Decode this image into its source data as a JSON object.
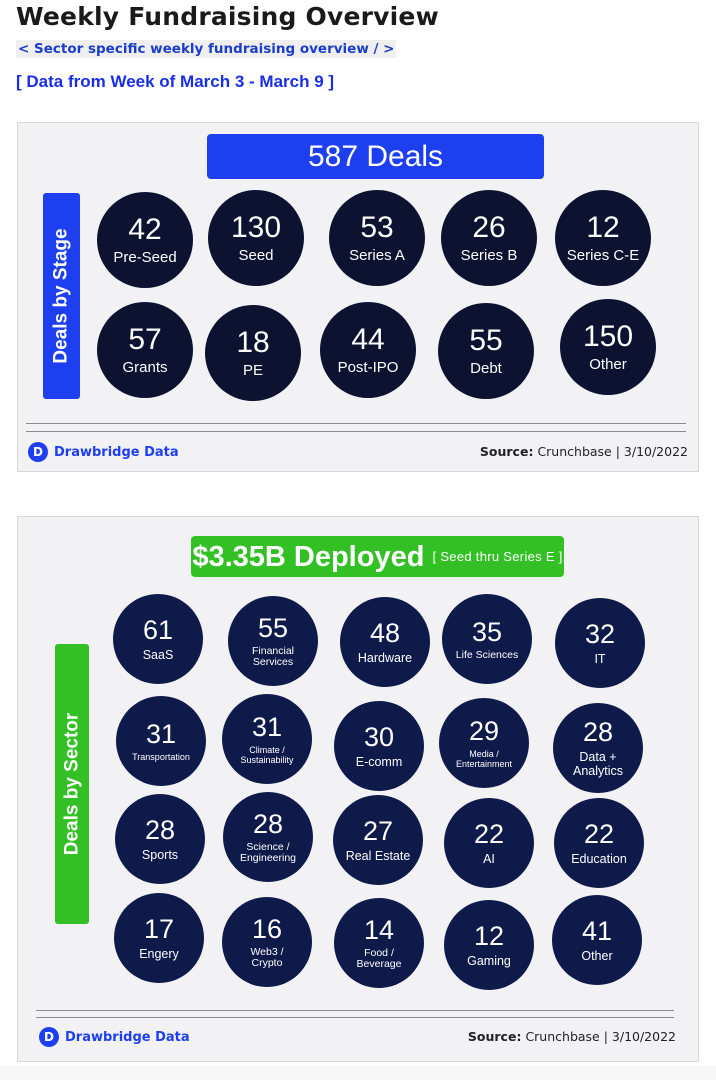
{
  "page": {
    "title": "Weekly Fundraising Overview",
    "breadcrumb": "< Sector specific weekly fundraising overview / >",
    "date_range": "[ Data from Week of March 3 - March 9 ]"
  },
  "stage_card": {
    "banner": "587 Deals",
    "side_label": "Deals by Stage",
    "items": [
      {
        "value": "42",
        "label": "Pre-Seed"
      },
      {
        "value": "130",
        "label": "Seed"
      },
      {
        "value": "53",
        "label": "Series A"
      },
      {
        "value": "26",
        "label": "Series B"
      },
      {
        "value": "12",
        "label": "Series C-E"
      },
      {
        "value": "57",
        "label": "Grants"
      },
      {
        "value": "18",
        "label": "PE"
      },
      {
        "value": "44",
        "label": "Post-IPO"
      },
      {
        "value": "55",
        "label": "Debt"
      },
      {
        "value": "150",
        "label": "Other"
      }
    ],
    "brand": "Drawbridge Data",
    "brand_icon": "D",
    "source_label": "Source:",
    "source_value": "Crunchbase | 3/10/2022",
    "colors": {
      "banner": "#1d3ff0",
      "circle": "#0c1230"
    }
  },
  "sector_card": {
    "banner_main": "$3.35B Deployed",
    "banner_sub": "[ Seed thru Series E ]",
    "side_label": "Deals by Sector",
    "items": [
      {
        "value": "61",
        "label": "SaaS"
      },
      {
        "value": "55",
        "label": "Financial\nServices"
      },
      {
        "value": "48",
        "label": "Hardware"
      },
      {
        "value": "35",
        "label": "Life Sciences"
      },
      {
        "value": "32",
        "label": "IT"
      },
      {
        "value": "31",
        "label": "Transportation"
      },
      {
        "value": "31",
        "label": "Climate /\nSustainability"
      },
      {
        "value": "30",
        "label": "E-comm"
      },
      {
        "value": "29",
        "label": "Media /\nEntertainment"
      },
      {
        "value": "28",
        "label": "Data +\nAnalytics"
      },
      {
        "value": "28",
        "label": "Sports"
      },
      {
        "value": "28",
        "label": "Science /\nEngineering"
      },
      {
        "value": "27",
        "label": "Real Estate"
      },
      {
        "value": "22",
        "label": "AI"
      },
      {
        "value": "22",
        "label": "Education"
      },
      {
        "value": "17",
        "label": "Engery"
      },
      {
        "value": "16",
        "label": "Web3 /\nCrypto"
      },
      {
        "value": "14",
        "label": "Food /\nBeverage"
      },
      {
        "value": "12",
        "label": "Gaming"
      },
      {
        "value": "41",
        "label": "Other"
      }
    ],
    "brand": "Drawbridge Data",
    "brand_icon": "D",
    "source_label": "Source:",
    "source_value": "Crunchbase | 3/10/2022",
    "colors": {
      "banner": "#33c024",
      "circle": "#0e1a4a"
    }
  }
}
